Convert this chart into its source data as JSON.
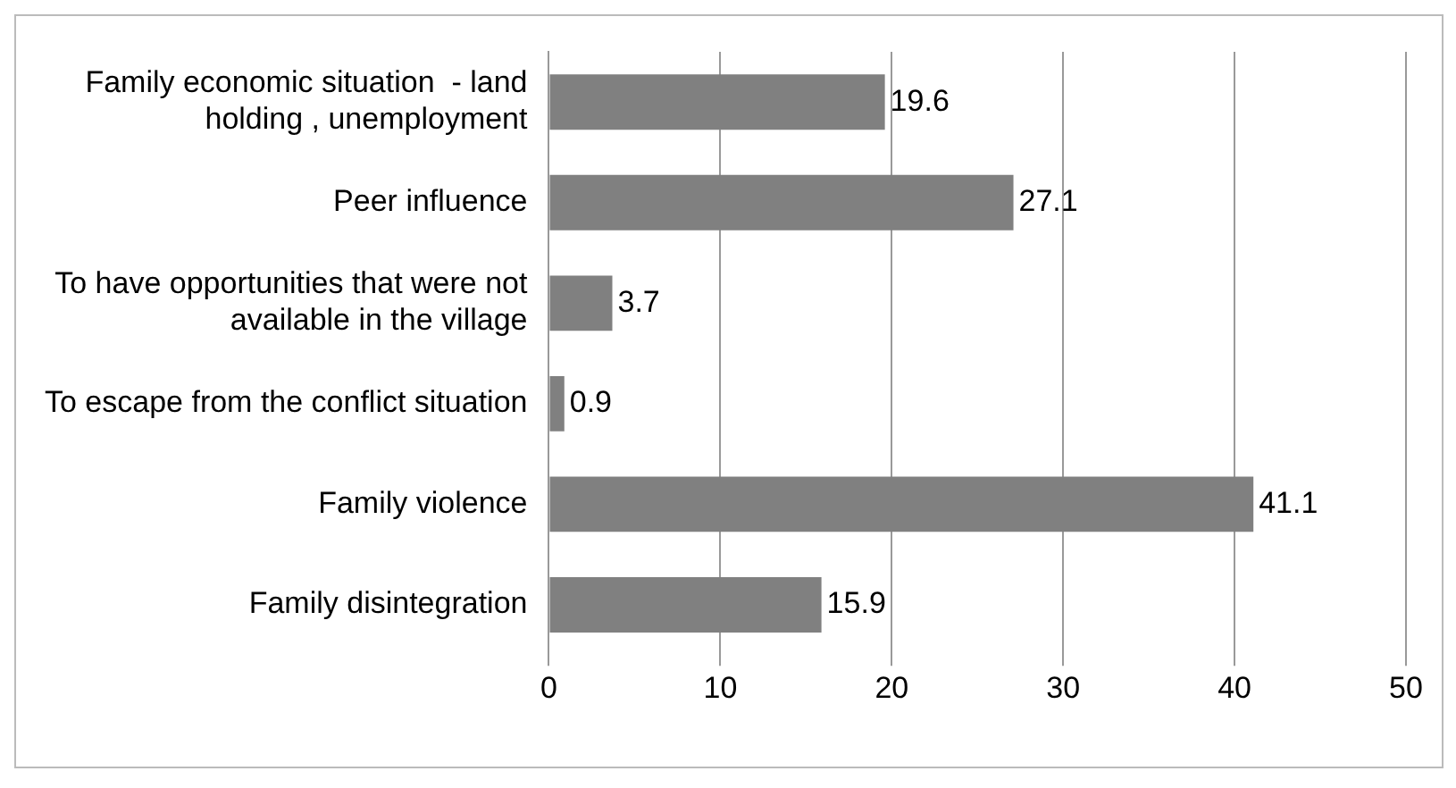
{
  "chart_data": {
    "type": "bar",
    "orientation": "horizontal",
    "categories": [
      "Family economic situation  - land holding , unemployment",
      "Peer influence",
      "To have opportunities that were not available in the village",
      "To escape from the conflict situation",
      "Family violence",
      "Family disintegration"
    ],
    "values": [
      19.6,
      27.1,
      3.7,
      0.9,
      41.1,
      15.9
    ],
    "color": "#808080",
    "xlim": [
      0,
      50
    ],
    "xticks": [
      0,
      10,
      20,
      30,
      40,
      50
    ],
    "grid": "x",
    "data_labels": true,
    "legend": false
  }
}
